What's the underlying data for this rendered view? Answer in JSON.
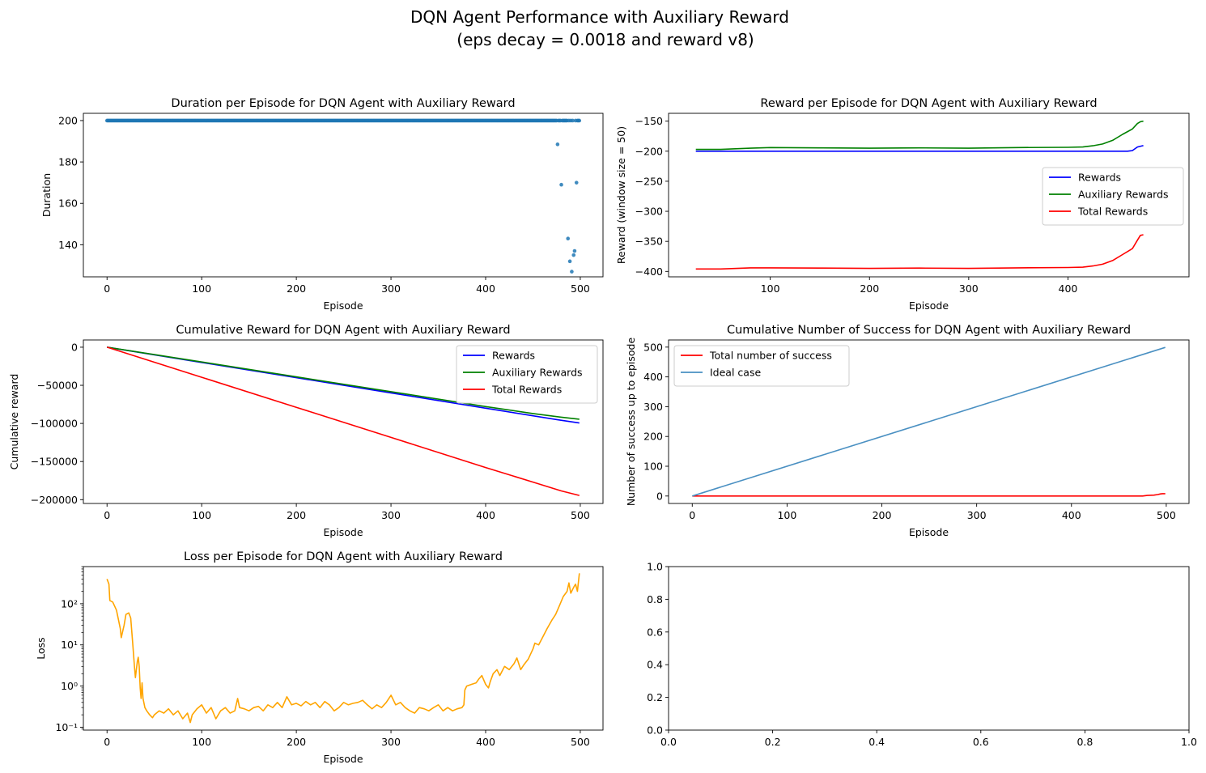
{
  "suptitle": [
    "DQN Agent Performance with Auxiliary Reward",
    "(eps decay = 0.0018 and reward v8)"
  ],
  "chart_data": [
    {
      "id": "duration",
      "type": "scatter",
      "title": "Duration per Episode for DQN Agent with Auxiliary Reward",
      "xlabel": "Episode",
      "ylabel": "Duration",
      "xlim": [
        -25,
        524
      ],
      "ylim": [
        124.5,
        203.5
      ],
      "xticks": [
        0,
        100,
        200,
        300,
        400,
        500
      ],
      "yticks": [
        140,
        160,
        180,
        200
      ],
      "color": "#1f77b4",
      "baseline": {
        "x_start": 0,
        "x_end": 499,
        "y": 200,
        "skip": [
          476,
          480,
          487,
          489,
          491,
          493,
          494,
          496
        ]
      },
      "points": [
        [
          476,
          188.5
        ],
        [
          480,
          169
        ],
        [
          487,
          143
        ],
        [
          489,
          132
        ],
        [
          491,
          127
        ],
        [
          493,
          135
        ],
        [
          494,
          137
        ],
        [
          496,
          170
        ]
      ],
      "legend": null
    },
    {
      "id": "reward",
      "type": "line",
      "title": "Reward per Episode for DQN Agent with Auxiliary Reward",
      "xlabel": "Episode",
      "ylabel": "Reward (window size = 50)",
      "xlim": [
        -2.5,
        522
      ],
      "ylim": [
        -409,
        -137
      ],
      "xticks": [
        100,
        200,
        300,
        400
      ],
      "yticks": [
        -150,
        -200,
        -250,
        -300,
        -350,
        -400
      ],
      "legend": "center-right",
      "series": [
        {
          "name": "Rewards",
          "color": "#0000ff",
          "points": [
            [
              25,
              -200
            ],
            [
              100,
              -200
            ],
            [
              200,
              -200
            ],
            [
              300,
              -200
            ],
            [
              400,
              -200
            ],
            [
              460,
              -200
            ],
            [
              465,
              -199
            ],
            [
              470,
              -193
            ],
            [
              475,
              -191
            ],
            [
              476,
              -191
            ]
          ]
        },
        {
          "name": "Auxiliary Rewards",
          "color": "#008000",
          "points": [
            [
              25,
              -197
            ],
            [
              50,
              -197
            ],
            [
              80,
              -195
            ],
            [
              100,
              -194
            ],
            [
              150,
              -194.5
            ],
            [
              200,
              -195
            ],
            [
              250,
              -194.5
            ],
            [
              300,
              -195
            ],
            [
              350,
              -194
            ],
            [
              400,
              -193.5
            ],
            [
              415,
              -193
            ],
            [
              425,
              -191
            ],
            [
              435,
              -188
            ],
            [
              445,
              -182
            ],
            [
              455,
              -172
            ],
            [
              465,
              -163
            ],
            [
              470,
              -154
            ],
            [
              473,
              -151
            ],
            [
              476,
              -150
            ]
          ]
        },
        {
          "name": "Total Rewards",
          "color": "#ff0000",
          "points": [
            [
              25,
              -396
            ],
            [
              50,
              -396
            ],
            [
              80,
              -394
            ],
            [
              100,
              -394
            ],
            [
              150,
              -394.5
            ],
            [
              200,
              -395
            ],
            [
              250,
              -394.5
            ],
            [
              300,
              -395
            ],
            [
              350,
              -394
            ],
            [
              400,
              -393.5
            ],
            [
              415,
              -393
            ],
            [
              425,
              -391
            ],
            [
              435,
              -388
            ],
            [
              445,
              -382
            ],
            [
              455,
              -372
            ],
            [
              465,
              -362
            ],
            [
              470,
              -348
            ],
            [
              473,
              -340
            ],
            [
              476,
              -339
            ]
          ]
        }
      ]
    },
    {
      "id": "cumulative-reward",
      "type": "line",
      "title": "Cumulative Reward for DQN Agent with Auxiliary Reward",
      "xlabel": "Episode",
      "ylabel": "Cumulative reward",
      "xlim": [
        -25,
        524
      ],
      "ylim": [
        -205000,
        9500
      ],
      "xticks": [
        0,
        100,
        200,
        300,
        400,
        500
      ],
      "yticks": [
        0,
        -50000,
        -100000,
        -150000,
        -200000
      ],
      "ytick_labels": [
        "0",
        "−50000",
        "−100000",
        "−150000",
        "−200000"
      ],
      "legend": "top-right",
      "series": [
        {
          "name": "Rewards",
          "color": "#0000ff",
          "points": [
            [
              0,
              0
            ],
            [
              100,
              -20000
            ],
            [
              200,
              -40000
            ],
            [
              300,
              -60000
            ],
            [
              400,
              -80000
            ],
            [
              476,
              -95200
            ],
            [
              499,
              -99500
            ]
          ]
        },
        {
          "name": "Auxiliary Rewards",
          "color": "#008000",
          "points": [
            [
              0,
              0
            ],
            [
              100,
              -19400
            ],
            [
              200,
              -38900
            ],
            [
              300,
              -58400
            ],
            [
              400,
              -77900
            ],
            [
              450,
              -87000
            ],
            [
              480,
              -91800
            ],
            [
              499,
              -94500
            ]
          ]
        },
        {
          "name": "Total Rewards",
          "color": "#ff0000",
          "points": [
            [
              0,
              0
            ],
            [
              100,
              -39400
            ],
            [
              200,
              -78900
            ],
            [
              300,
              -118400
            ],
            [
              400,
              -157900
            ],
            [
              450,
              -177000
            ],
            [
              480,
              -188500
            ],
            [
              499,
              -194500
            ]
          ]
        }
      ]
    },
    {
      "id": "cumulative-success",
      "type": "line",
      "title": "Cumulative Number of Success for DQN Agent with Auxiliary Reward",
      "xlabel": "Episode",
      "ylabel": "Number of success up to episode",
      "xlim": [
        -25,
        524
      ],
      "ylim": [
        -25,
        524
      ],
      "xticks": [
        0,
        100,
        200,
        300,
        400,
        500
      ],
      "yticks": [
        0,
        100,
        200,
        300,
        400,
        500
      ],
      "legend": "top-left",
      "series": [
        {
          "name": "Total number of success",
          "color": "#ff0000",
          "points": [
            [
              0,
              0
            ],
            [
              475,
              0
            ],
            [
              480,
              2
            ],
            [
              487,
              3
            ],
            [
              491,
              5
            ],
            [
              494,
              7
            ],
            [
              496,
              8
            ],
            [
              499,
              8
            ]
          ]
        },
        {
          "name": "Ideal case",
          "color": "#4a90c2",
          "points": [
            [
              0,
              0
            ],
            [
              499,
              499
            ]
          ]
        }
      ]
    },
    {
      "id": "loss",
      "type": "line",
      "title": "Loss per Episode for DQN Agent with Auxiliary Reward",
      "xlabel": "Episode",
      "ylabel": "Loss",
      "yscale": "log",
      "xlim": [
        -25,
        524
      ],
      "ylim": [
        0.085,
        800
      ],
      "xticks": [
        0,
        100,
        200,
        300,
        400,
        500
      ],
      "yticks": [
        0.1,
        1,
        10,
        100
      ],
      "ytick_labels": [
        "10⁻¹",
        "10⁰",
        "10¹",
        "10²"
      ],
      "legend": null,
      "series": [
        {
          "name": "",
          "color": "#ffa500",
          "points": [
            [
              0,
              400
            ],
            [
              2,
              300
            ],
            [
              3,
              120
            ],
            [
              6,
              110
            ],
            [
              10,
              70
            ],
            [
              14,
              25
            ],
            [
              15,
              15
            ],
            [
              18,
              30
            ],
            [
              20,
              55
            ],
            [
              23,
              60
            ],
            [
              25,
              45
            ],
            [
              27,
              12
            ],
            [
              29,
              3
            ],
            [
              30,
              1.6
            ],
            [
              32,
              4
            ],
            [
              33,
              5
            ],
            [
              34,
              3
            ],
            [
              35,
              0.9
            ],
            [
              36,
              0.5
            ],
            [
              37,
              1.2
            ],
            [
              38,
              0.5
            ],
            [
              40,
              0.3
            ],
            [
              42,
              0.25
            ],
            [
              45,
              0.2
            ],
            [
              48,
              0.17
            ],
            [
              50,
              0.2
            ],
            [
              55,
              0.25
            ],
            [
              60,
              0.22
            ],
            [
              65,
              0.28
            ],
            [
              70,
              0.2
            ],
            [
              75,
              0.25
            ],
            [
              80,
              0.16
            ],
            [
              85,
              0.22
            ],
            [
              88,
              0.13
            ],
            [
              90,
              0.2
            ],
            [
              95,
              0.28
            ],
            [
              100,
              0.35
            ],
            [
              105,
              0.22
            ],
            [
              110,
              0.3
            ],
            [
              115,
              0.16
            ],
            [
              120,
              0.25
            ],
            [
              125,
              0.3
            ],
            [
              130,
              0.22
            ],
            [
              135,
              0.25
            ],
            [
              138,
              0.5
            ],
            [
              140,
              0.3
            ],
            [
              145,
              0.28
            ],
            [
              150,
              0.25
            ],
            [
              155,
              0.3
            ],
            [
              160,
              0.32
            ],
            [
              165,
              0.25
            ],
            [
              170,
              0.35
            ],
            [
              175,
              0.3
            ],
            [
              180,
              0.4
            ],
            [
              185,
              0.3
            ],
            [
              190,
              0.55
            ],
            [
              195,
              0.35
            ],
            [
              200,
              0.38
            ],
            [
              205,
              0.33
            ],
            [
              210,
              0.42
            ],
            [
              215,
              0.35
            ],
            [
              220,
              0.4
            ],
            [
              225,
              0.3
            ],
            [
              230,
              0.42
            ],
            [
              235,
              0.35
            ],
            [
              240,
              0.25
            ],
            [
              245,
              0.3
            ],
            [
              250,
              0.4
            ],
            [
              255,
              0.35
            ],
            [
              260,
              0.38
            ],
            [
              265,
              0.4
            ],
            [
              270,
              0.45
            ],
            [
              275,
              0.35
            ],
            [
              280,
              0.28
            ],
            [
              285,
              0.35
            ],
            [
              290,
              0.3
            ],
            [
              295,
              0.4
            ],
            [
              300,
              0.6
            ],
            [
              305,
              0.35
            ],
            [
              310,
              0.4
            ],
            [
              315,
              0.3
            ],
            [
              320,
              0.25
            ],
            [
              325,
              0.22
            ],
            [
              330,
              0.3
            ],
            [
              335,
              0.28
            ],
            [
              340,
              0.25
            ],
            [
              345,
              0.3
            ],
            [
              350,
              0.35
            ],
            [
              355,
              0.25
            ],
            [
              360,
              0.3
            ],
            [
              365,
              0.25
            ],
            [
              370,
              0.28
            ],
            [
              375,
              0.3
            ],
            [
              377,
              0.35
            ],
            [
              378,
              0.8
            ],
            [
              380,
              1.0
            ],
            [
              385,
              1.1
            ],
            [
              390,
              1.2
            ],
            [
              393,
              1.5
            ],
            [
              396,
              1.8
            ],
            [
              400,
              1.1
            ],
            [
              403,
              0.9
            ],
            [
              405,
              1.3
            ],
            [
              408,
              2.0
            ],
            [
              412,
              2.5
            ],
            [
              415,
              1.8
            ],
            [
              420,
              3.0
            ],
            [
              425,
              2.5
            ],
            [
              430,
              3.5
            ],
            [
              433,
              4.8
            ],
            [
              437,
              2.5
            ],
            [
              440,
              3.2
            ],
            [
              445,
              4.5
            ],
            [
              450,
              8
            ],
            [
              452,
              11
            ],
            [
              456,
              10
            ],
            [
              460,
              15
            ],
            [
              465,
              25
            ],
            [
              470,
              40
            ],
            [
              474,
              55
            ],
            [
              478,
              90
            ],
            [
              482,
              150
            ],
            [
              486,
              200
            ],
            [
              488,
              320
            ],
            [
              490,
              180
            ],
            [
              493,
              250
            ],
            [
              495,
              300
            ],
            [
              497,
              200
            ],
            [
              499,
              550
            ]
          ]
        }
      ]
    },
    {
      "id": "empty",
      "type": "line",
      "title": "",
      "xlabel": "",
      "ylabel": "",
      "xlim": [
        0,
        1
      ],
      "ylim": [
        0,
        1
      ],
      "xticks": [
        0,
        0.2,
        0.4,
        0.6,
        0.8,
        1.0
      ],
      "yticks": [
        0,
        0.2,
        0.4,
        0.6,
        0.8,
        1.0
      ],
      "xtick_labels": [
        "0.0",
        "0.2",
        "0.4",
        "0.6",
        "0.8",
        "1.0"
      ],
      "ytick_labels": [
        "0.0",
        "0.2",
        "0.4",
        "0.6",
        "0.8",
        "1.0"
      ],
      "legend": null,
      "series": []
    }
  ]
}
